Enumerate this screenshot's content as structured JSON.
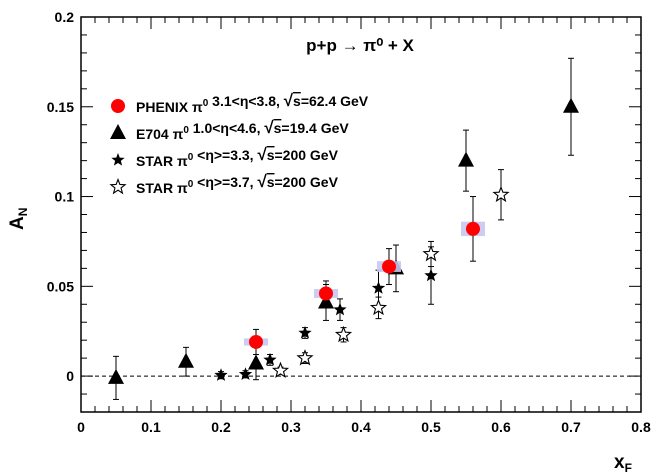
{
  "chart_data": {
    "type": "scatter",
    "title": "p+p → π⁰ + X",
    "xlabel": "x",
    "xlabel_sub": "F",
    "ylabel": "A",
    "ylabel_sub": "N",
    "xlim": [
      0,
      0.8
    ],
    "ylim": [
      -0.02,
      0.2
    ],
    "x_ticks": [
      0,
      0.1,
      0.2,
      0.3,
      0.4,
      0.5,
      0.6,
      0.7,
      0.8
    ],
    "x_tick_labels": [
      "0",
      "0.1",
      "0.2",
      "0.3",
      "0.4",
      "0.5",
      "0.6",
      "0.7",
      "0.8"
    ],
    "y_ticks": [
      0,
      0.05,
      0.1,
      0.15,
      0.2
    ],
    "y_tick_labels": [
      "0",
      "0.05",
      "0.1",
      "0.15",
      "0.2"
    ],
    "grid": false,
    "zero_line": "dashed",
    "legend_position": "top-left",
    "series": [
      {
        "name": "PHENIX π⁰ 3.1<η<3.8, √s=62.4 GeV",
        "legend_parts": [
          {
            "t": "PHENIX π"
          },
          {
            "t": "0",
            "sup": true
          },
          {
            "t": " 3.1<η<3.8, "
          },
          {
            "t": "√",
            "s": 1.2
          },
          {
            "t": "s",
            "over": true
          },
          {
            "t": "=62.4 GeV"
          }
        ],
        "marker": "circle",
        "color": "#ff0000",
        "syst_color": "#c8c8f0",
        "points": [
          {
            "x": 0.25,
            "y": 0.019,
            "err": 0.007,
            "syst": 0.002
          },
          {
            "x": 0.35,
            "y": 0.046,
            "err": 0.007,
            "syst": 0.0025
          },
          {
            "x": 0.44,
            "y": 0.061,
            "err": 0.01,
            "syst": 0.003
          },
          {
            "x": 0.56,
            "y": 0.082,
            "err": 0.018,
            "syst": 0.004
          }
        ]
      },
      {
        "name": "E704 π⁰ 1.0<η<4.6, √s=19.4 GeV",
        "legend_parts": [
          {
            "t": "E704 π"
          },
          {
            "t": "0",
            "sup": true
          },
          {
            "t": " 1.0<η<4.6, "
          },
          {
            "t": "√",
            "s": 1.2
          },
          {
            "t": "s",
            "over": true
          },
          {
            "t": "=19.4 GeV"
          }
        ],
        "marker": "triangle",
        "color": "#000000",
        "points": [
          {
            "x": 0.05,
            "y": -0.001,
            "err": 0.012
          },
          {
            "x": 0.15,
            "y": 0.008,
            "err": 0.008
          },
          {
            "x": 0.25,
            "y": 0.007,
            "err": 0.009
          },
          {
            "x": 0.35,
            "y": 0.041,
            "err": 0.01
          },
          {
            "x": 0.45,
            "y": 0.06,
            "err": 0.013
          },
          {
            "x": 0.55,
            "y": 0.12,
            "err": 0.017
          },
          {
            "x": 0.7,
            "y": 0.15,
            "err": 0.027
          }
        ]
      },
      {
        "name": "STAR π⁰ <η>=3.3, √s=200 GeV",
        "legend_parts": [
          {
            "t": "STAR π"
          },
          {
            "t": "0",
            "sup": true
          },
          {
            "t": " <η>=3.3, "
          },
          {
            "t": "√",
            "s": 1.2
          },
          {
            "t": "s",
            "over": true
          },
          {
            "t": "=200 GeV"
          }
        ],
        "marker": "star-filled",
        "color": "#000000",
        "points": [
          {
            "x": 0.2,
            "y": 0.0005,
            "err": 0.002
          },
          {
            "x": 0.235,
            "y": 0.001,
            "err": 0.002
          },
          {
            "x": 0.27,
            "y": 0.009,
            "err": 0.003
          },
          {
            "x": 0.32,
            "y": 0.024,
            "err": 0.003
          },
          {
            "x": 0.37,
            "y": 0.037,
            "err": 0.006
          },
          {
            "x": 0.425,
            "y": 0.049,
            "err": 0.01
          },
          {
            "x": 0.5,
            "y": 0.056,
            "err": 0.016
          }
        ]
      },
      {
        "name": "STAR π⁰ <η>=3.7, √s=200 GeV",
        "legend_parts": [
          {
            "t": "STAR π"
          },
          {
            "t": "0",
            "sup": true
          },
          {
            "t": " <η>=3.7, "
          },
          {
            "t": "√",
            "s": 1.2
          },
          {
            "t": "s",
            "over": true
          },
          {
            "t": "=200 GeV"
          }
        ],
        "marker": "star-open",
        "color": "#000000",
        "points": [
          {
            "x": 0.285,
            "y": 0.003,
            "err": 0.002
          },
          {
            "x": 0.32,
            "y": 0.01,
            "err": 0.003
          },
          {
            "x": 0.375,
            "y": 0.023,
            "err": 0.004
          },
          {
            "x": 0.425,
            "y": 0.038,
            "err": 0.006
          },
          {
            "x": 0.5,
            "y": 0.068,
            "err": 0.007
          },
          {
            "x": 0.6,
            "y": 0.101,
            "err": 0.014
          }
        ]
      }
    ]
  }
}
